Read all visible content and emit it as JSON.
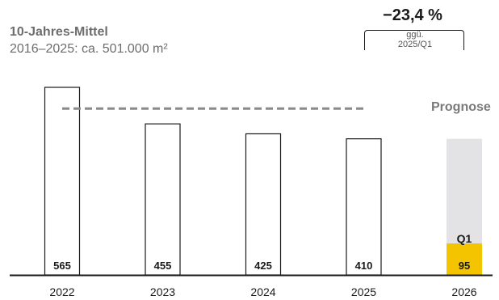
{
  "header": {
    "title": "10-Jahres-Mittel",
    "subtitle": "2016–2025: ca. 501.000 m²"
  },
  "change": {
    "value": "−23,4 %",
    "note_line1": "ggü.",
    "note_line2": "2025/Q1"
  },
  "forecast_label": "Prognose",
  "colors": {
    "bar_fill": "#ffffff",
    "bar_stroke": "#1a1a1a",
    "forecast_bg": "#e3e3e6",
    "q1_fill": "#f5c400",
    "mean_line": "#8a8a8a",
    "axis": "#1a1a1a"
  },
  "chart_data": {
    "type": "bar",
    "categories": [
      "2022",
      "2023",
      "2024",
      "2025",
      "2026"
    ],
    "values": [
      565,
      455,
      425,
      410,
      95
    ],
    "data_labels": [
      "565",
      "455",
      "425",
      "410",
      "95"
    ],
    "reference_line": {
      "value": 501
    },
    "forecast": {
      "category": "2026",
      "value": 410,
      "label": "Prognose",
      "segment_label": "Q1"
    },
    "ylim": [
      0,
      600
    ],
    "grid": false
  }
}
